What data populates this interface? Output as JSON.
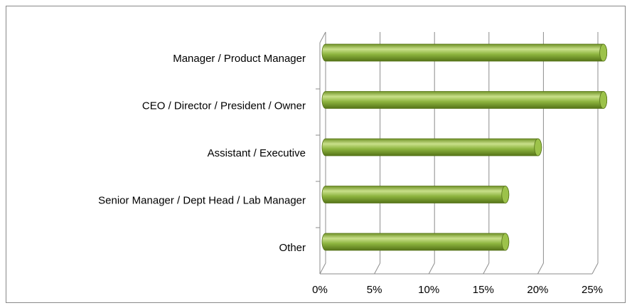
{
  "chart_data": {
    "type": "bar",
    "orientation": "horizontal",
    "categories": [
      "Manager / Product Manager",
      "CEO / Director / President / Owner",
      "Assistant / Executive",
      "Senior Manager / Dept Head / Lab Manager",
      "Other"
    ],
    "values": [
      25.5,
      25.5,
      19.5,
      16.5,
      16.5
    ],
    "color": "#8db43e",
    "xlim": [
      0,
      25
    ],
    "xticks": [
      {
        "value": 0,
        "label": "0%"
      },
      {
        "value": 5,
        "label": "5%"
      },
      {
        "value": 10,
        "label": "10%"
      },
      {
        "value": 15,
        "label": "15%"
      },
      {
        "value": 20,
        "label": "20%"
      },
      {
        "value": 25,
        "label": "25%"
      }
    ],
    "grid": true
  }
}
